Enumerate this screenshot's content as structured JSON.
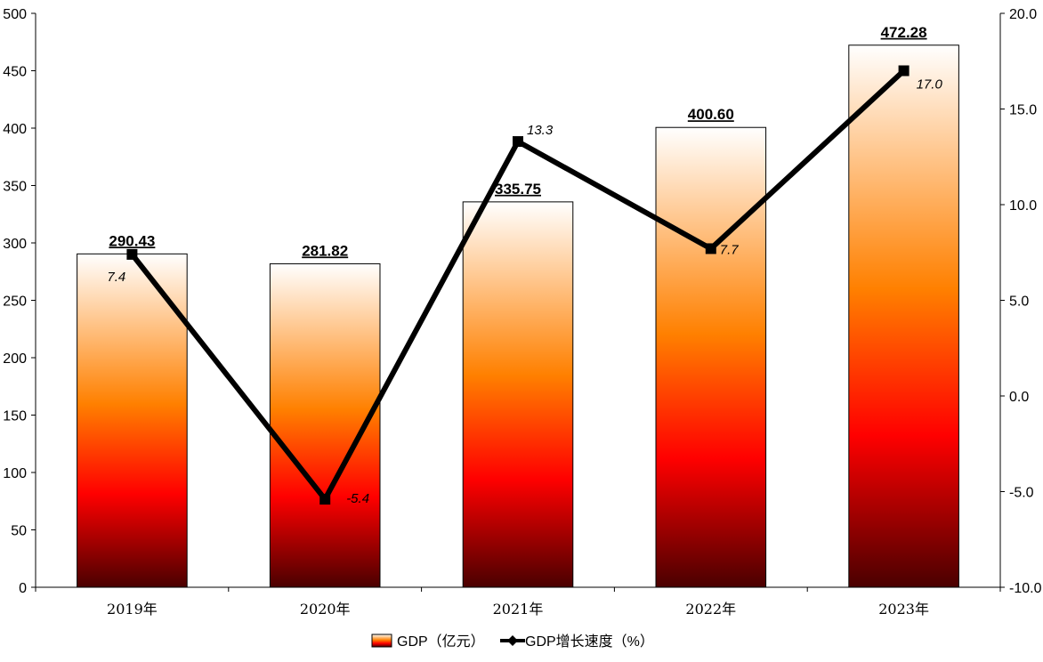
{
  "chart_data": {
    "type": "bar",
    "categories": [
      "2019年",
      "2020年",
      "2021年",
      "2022年",
      "2023年"
    ],
    "series": [
      {
        "name": "GDP（亿元）",
        "type": "bar",
        "axis": "left",
        "values": [
          290.43,
          281.82,
          335.75,
          400.6,
          472.28
        ],
        "labels": [
          "290.43",
          "281.82",
          "335.75",
          "400.60",
          "472.28"
        ]
      },
      {
        "name": "GDP增长速度（%）",
        "type": "line",
        "axis": "right",
        "values": [
          7.4,
          -5.4,
          13.3,
          7.7,
          17.0
        ],
        "labels": [
          "7.4",
          "-5.4",
          "13.3",
          "7.7",
          "17.0"
        ]
      }
    ],
    "y_left": {
      "range": [
        0,
        500
      ],
      "ticks": [
        "0",
        "50",
        "100",
        "150",
        "200",
        "250",
        "300",
        "350",
        "400",
        "450",
        "500"
      ]
    },
    "y_right": {
      "range": [
        -10,
        20
      ],
      "ticks": [
        "-10.0",
        "-5.0",
        "0.0",
        "5.0",
        "10.0",
        "15.0",
        "20.0"
      ]
    },
    "grid": false,
    "legend": "bottom",
    "colors": {
      "bar_gradient": [
        "#ffffff",
        "#ff8000",
        "#ff0000",
        "#4a0000"
      ],
      "line": "#000000",
      "axis": "#000000"
    }
  }
}
